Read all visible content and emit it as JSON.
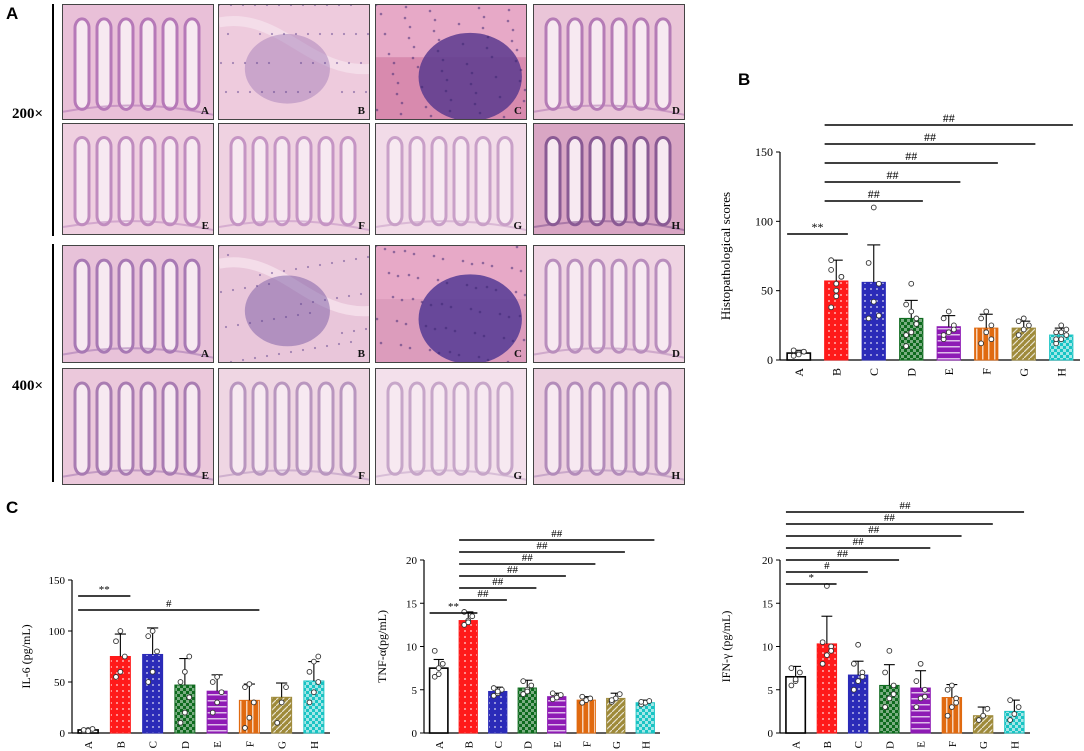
{
  "panels": {
    "a": "A",
    "b": "B",
    "c": "C"
  },
  "magnifications": {
    "low": "200×",
    "high": "400×"
  },
  "micrographs": {
    "row1": [
      {
        "label": "A",
        "tint": "#e9c0d8",
        "accent": "#b679b8",
        "style": "crypts"
      },
      {
        "label": "B",
        "tint": "#eecbdd",
        "accent": "#9d78b6",
        "style": "diffuse"
      },
      {
        "label": "C",
        "tint": "#d88aae",
        "accent": "#5a3a8e",
        "style": "dense"
      },
      {
        "label": "D",
        "tint": "#eac5d8",
        "accent": "#b57cb6",
        "style": "crypts"
      }
    ],
    "row2": [
      {
        "label": "E",
        "tint": "#efcfe0",
        "accent": "#c08cbf",
        "style": "crypts"
      },
      {
        "label": "F",
        "tint": "#efd2e1",
        "accent": "#c595c4",
        "style": "crypts"
      },
      {
        "label": "G",
        "tint": "#f2dbe8",
        "accent": "#c9a0c8",
        "style": "crypts"
      },
      {
        "label": "H",
        "tint": "#d9a6c4",
        "accent": "#8a5a94",
        "style": "crypts"
      }
    ],
    "row3": [
      {
        "label": "A",
        "tint": "#e8c2d9",
        "accent": "#a879b4",
        "style": "crypts"
      },
      {
        "label": "B",
        "tint": "#e9c6da",
        "accent": "#6c4d9e",
        "style": "diffuse"
      },
      {
        "label": "C",
        "tint": "#dc9cbc",
        "accent": "#533a94",
        "style": "dense"
      },
      {
        "label": "D",
        "tint": "#efd3e2",
        "accent": "#b98ebd",
        "style": "crypts"
      }
    ],
    "row4": [
      {
        "label": "E",
        "tint": "#ebc8db",
        "accent": "#a97cb2",
        "style": "crypts"
      },
      {
        "label": "F",
        "tint": "#efd6e3",
        "accent": "#b996bf",
        "style": "crypts"
      },
      {
        "label": "G",
        "tint": "#f3e0eb",
        "accent": "#c7a6c9",
        "style": "crypts"
      },
      {
        "label": "H",
        "tint": "#ecd0df",
        "accent": "#b38cba",
        "style": "crypts"
      }
    ]
  },
  "group_colors": [
    "#ffffff",
    "#ff1a1a",
    "#2b2bb8",
    "#0e6b1e",
    "#8e1bb5",
    "#e06a10",
    "#9e8a3a",
    "#19c4c4"
  ],
  "group_patterns": [
    "none",
    "dots",
    "dots",
    "checker",
    "hstripe",
    "vstripe",
    "diag",
    "checker"
  ],
  "chart_data": [
    {
      "type": "bar",
      "categories": [
        "A",
        "B",
        "C",
        "D",
        "E",
        "F",
        "G",
        "H"
      ],
      "values": [
        5,
        57,
        56,
        30,
        24,
        23,
        23,
        18
      ],
      "errors": [
        2,
        15,
        27,
        13,
        8,
        10,
        5,
        5
      ],
      "points": [
        [
          3,
          5,
          6,
          7,
          4,
          6
        ],
        [
          38,
          55,
          60,
          72,
          46,
          60,
          65,
          50
        ],
        [
          30,
          42,
          55,
          70,
          110,
          32
        ],
        [
          10,
          20,
          30,
          40,
          55,
          26,
          18,
          35
        ],
        [
          15,
          20,
          25,
          30,
          35,
          22,
          18
        ],
        [
          12,
          20,
          25,
          30,
          35,
          15
        ],
        [
          18,
          22,
          25,
          28,
          30
        ],
        [
          12,
          15,
          18,
          20,
          25,
          22,
          15,
          20
        ]
      ],
      "ylabel": "Histopathological scores",
      "ylim": [
        0,
        150
      ],
      "yticks": [
        "0",
        "50",
        "100",
        "150"
      ],
      "annotations": [
        {
          "from": "A",
          "to": "B",
          "text": "**"
        },
        {
          "from": "B",
          "to": "D",
          "text": "##"
        },
        {
          "from": "B",
          "to": "E",
          "text": "##"
        },
        {
          "from": "B",
          "to": "F",
          "text": "##"
        },
        {
          "from": "B",
          "to": "G",
          "text": "##"
        },
        {
          "from": "B",
          "to": "H",
          "text": "##"
        }
      ]
    },
    {
      "type": "bar",
      "categories": [
        "A",
        "B",
        "C",
        "D",
        "E",
        "F",
        "G",
        "H"
      ],
      "values": [
        3,
        75,
        77,
        47,
        41,
        32,
        35,
        51
      ],
      "errors": [
        1,
        22,
        26,
        26,
        16,
        16,
        14,
        19
      ],
      "points": [
        [
          2,
          3,
          4,
          3,
          2
        ],
        [
          55,
          60,
          75,
          90,
          100
        ],
        [
          50,
          60,
          80,
          95,
          100
        ],
        [
          10,
          20,
          35,
          50,
          60,
          75
        ],
        [
          20,
          30,
          40,
          50,
          55
        ],
        [
          5,
          15,
          30,
          45,
          48
        ],
        [
          10,
          30,
          45
        ],
        [
          30,
          40,
          50,
          60,
          70,
          75
        ]
      ],
      "ylabel": "IL-6 (pg/mL)",
      "ylim": [
        0,
        150
      ],
      "yticks": [
        "0",
        "50",
        "100",
        "150"
      ],
      "annotations": [
        {
          "from": "A",
          "to": "B",
          "text": "**"
        },
        {
          "from": "A",
          "to": "F",
          "text": "#"
        }
      ]
    },
    {
      "type": "bar",
      "categories": [
        "A",
        "B",
        "C",
        "D",
        "E",
        "F",
        "G",
        "H"
      ],
      "values": [
        7.5,
        13,
        4.8,
        5.2,
        4.2,
        3.8,
        4,
        3.5
      ],
      "errors": [
        1,
        1,
        0.5,
        0.9,
        0.4,
        0.4,
        0.6,
        0.3
      ],
      "points": [
        [
          6.5,
          7.5,
          8,
          9.5,
          6.8
        ],
        [
          12.5,
          13,
          13.5,
          14,
          12.8
        ],
        [
          4.3,
          4.6,
          5,
          5.2,
          4.8
        ],
        [
          4.5,
          5,
          5.5,
          6,
          4.8
        ],
        [
          3.9,
          4.1,
          4.4,
          4.6
        ],
        [
          3.5,
          3.8,
          4,
          4.2
        ],
        [
          3.6,
          4,
          4.5,
          3.8
        ],
        [
          3.3,
          3.5,
          3.7,
          3.6
        ]
      ],
      "ylabel": "TNF-α(pg/mL)",
      "ylim": [
        0,
        20
      ],
      "yticks": [
        "0",
        "5",
        "10",
        "15",
        "20"
      ],
      "annotations": [
        {
          "from": "A",
          "to": "B",
          "text": "**"
        },
        {
          "from": "B",
          "to": "C",
          "text": "##"
        },
        {
          "from": "B",
          "to": "D",
          "text": "##"
        },
        {
          "from": "B",
          "to": "E",
          "text": "##"
        },
        {
          "from": "B",
          "to": "F",
          "text": "##"
        },
        {
          "from": "B",
          "to": "G",
          "text": "##"
        },
        {
          "from": "B",
          "to": "H",
          "text": "##"
        }
      ]
    },
    {
      "type": "bar",
      "categories": [
        "A",
        "B",
        "C",
        "D",
        "E",
        "F",
        "G",
        "H"
      ],
      "values": [
        6.5,
        10.3,
        6.7,
        5.5,
        5.2,
        4.1,
        2,
        2.5
      ],
      "errors": [
        1.2,
        3.2,
        1.6,
        2.4,
        2,
        1.5,
        1,
        1.3
      ],
      "points": [
        [
          5.5,
          6,
          7,
          7.5,
          6.2
        ],
        [
          8,
          9,
          10,
          10.5,
          17,
          9.5
        ],
        [
          5,
          6,
          7,
          8,
          10.2,
          6.5
        ],
        [
          3,
          4,
          5.5,
          7,
          9.5,
          4.5
        ],
        [
          3,
          4,
          5,
          6,
          8,
          4.2
        ],
        [
          2,
          3,
          4,
          5,
          5.5,
          3.5
        ],
        [
          1.5,
          2,
          2.8
        ],
        [
          1.5,
          2.2,
          3,
          3.8
        ]
      ],
      "ylabel": "IFN-γ (pg/mL)",
      "ylim": [
        0,
        20
      ],
      "yticks": [
        "0",
        "5",
        "10",
        "15",
        "20"
      ],
      "annotations": [
        {
          "from": "A",
          "to": "B",
          "text": "*"
        },
        {
          "from": "A",
          "to": "C",
          "text": "#"
        },
        {
          "from": "A",
          "to": "D",
          "text": "##"
        },
        {
          "from": "A",
          "to": "E",
          "text": "##"
        },
        {
          "from": "A",
          "to": "F",
          "text": "##"
        },
        {
          "from": "A",
          "to": "G",
          "text": "##"
        },
        {
          "from": "A",
          "to": "H",
          "text": "##"
        }
      ]
    }
  ]
}
